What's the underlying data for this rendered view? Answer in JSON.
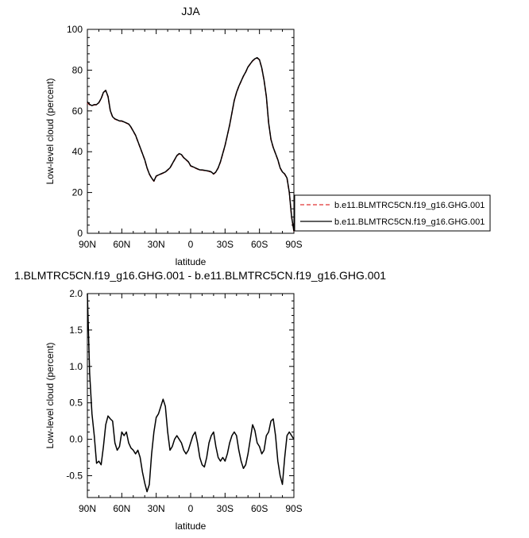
{
  "chart_data": [
    {
      "type": "line",
      "title": "JJA",
      "xlabel": "latitude",
      "ylabel": "Low-level cloud (percent)",
      "xlim": [
        -90,
        90
      ],
      "ylim": [
        0,
        100
      ],
      "x_ticks": [
        -90,
        -60,
        -30,
        0,
        30,
        60,
        90
      ],
      "x_tick_labels": [
        "90N",
        "60N",
        "30N",
        "0",
        "30S",
        "60S",
        "90S"
      ],
      "y_ticks": [
        0,
        20,
        40,
        60,
        80,
        100
      ],
      "y_tick_labels": [
        "0",
        "20",
        "40",
        "60",
        "80",
        "100"
      ],
      "legend_placement": "right",
      "series": [
        {
          "name": "b.e11.BLMTRC5CN.f19_g16.GHG.001",
          "color": "#e03030",
          "dash": "dashed",
          "x": [
            -90,
            -88,
            -86,
            -84,
            -82,
            -80,
            -78,
            -76,
            -74,
            -72,
            -70,
            -68,
            -66,
            -64,
            -62,
            -60,
            -58,
            -56,
            -54,
            -52,
            -50,
            -48,
            -46,
            -44,
            -42,
            -40,
            -38,
            -36,
            -34,
            -32,
            -30,
            -28,
            -26,
            -24,
            -22,
            -20,
            -18,
            -16,
            -14,
            -12,
            -10,
            -8,
            -6,
            -4,
            -2,
            0,
            2,
            4,
            6,
            8,
            10,
            12,
            14,
            16,
            18,
            20,
            22,
            24,
            26,
            28,
            30,
            32,
            34,
            36,
            38,
            40,
            42,
            44,
            46,
            48,
            50,
            52,
            54,
            56,
            58,
            60,
            62,
            64,
            66,
            68,
            70,
            72,
            74,
            76,
            78,
            80,
            82,
            84,
            86,
            88,
            90
          ],
          "values": [
            64,
            63,
            62.5,
            63,
            63,
            64,
            66,
            69,
            70,
            67,
            60,
            57,
            56,
            55.5,
            55,
            55,
            54.5,
            54,
            53.5,
            52,
            50,
            48,
            45,
            42,
            39,
            36,
            32,
            29,
            27,
            25.5,
            28,
            28.5,
            29,
            29.5,
            30,
            31,
            32,
            34,
            36,
            38,
            39,
            38.5,
            37,
            36,
            35,
            33,
            32.5,
            32,
            31.5,
            31,
            31,
            30.8,
            30.6,
            30.4,
            30,
            29,
            30,
            32,
            35,
            39,
            43,
            48,
            53,
            59,
            65,
            69,
            72,
            74.5,
            77,
            79,
            81.5,
            83,
            84.5,
            85.5,
            86,
            85,
            81,
            75,
            67,
            54,
            46,
            42,
            39,
            36,
            32,
            30,
            29,
            27,
            20,
            8,
            1
          ]
        },
        {
          "name": "b.e11.BLMTRC5CN.f19_g16.GHG.001",
          "color": "#000000",
          "dash": "solid",
          "x": [
            -90,
            -88,
            -86,
            -84,
            -82,
            -80,
            -78,
            -76,
            -74,
            -72,
            -70,
            -68,
            -66,
            -64,
            -62,
            -60,
            -58,
            -56,
            -54,
            -52,
            -50,
            -48,
            -46,
            -44,
            -42,
            -40,
            -38,
            -36,
            -34,
            -32,
            -30,
            -28,
            -26,
            -24,
            -22,
            -20,
            -18,
            -16,
            -14,
            -12,
            -10,
            -8,
            -6,
            -4,
            -2,
            0,
            2,
            4,
            6,
            8,
            10,
            12,
            14,
            16,
            18,
            20,
            22,
            24,
            26,
            28,
            30,
            32,
            34,
            36,
            38,
            40,
            42,
            44,
            46,
            48,
            50,
            52,
            54,
            56,
            58,
            60,
            62,
            64,
            66,
            68,
            70,
            72,
            74,
            76,
            78,
            80,
            82,
            84,
            86,
            88,
            90
          ],
          "values": [
            64.5,
            63.2,
            62.6,
            63.1,
            63.1,
            64.1,
            66.1,
            69.1,
            70.1,
            67.1,
            60.1,
            57.1,
            56.1,
            55.6,
            55.1,
            55.1,
            54.6,
            54.1,
            53.6,
            52.1,
            50.1,
            48.1,
            45.1,
            42.1,
            39.1,
            36.1,
            32.1,
            29.1,
            27.1,
            25.6,
            28.1,
            28.6,
            29.1,
            29.6,
            30.1,
            31.1,
            32.1,
            34.1,
            36.1,
            38.1,
            39.1,
            38.6,
            37.1,
            36.1,
            35.1,
            33.1,
            32.6,
            32.1,
            31.6,
            31.1,
            31.1,
            30.9,
            30.7,
            30.5,
            30.1,
            29.1,
            30.1,
            32.1,
            35.1,
            39.1,
            43.1,
            48.1,
            53.1,
            59.1,
            65.1,
            69.1,
            72.1,
            74.6,
            77.1,
            79.1,
            81.6,
            83.1,
            84.6,
            85.6,
            86.1,
            85.1,
            81.1,
            75.1,
            67.1,
            54.1,
            46.1,
            42.1,
            39.1,
            36.1,
            32.1,
            30.1,
            29.1,
            27.1,
            20.1,
            8.1,
            1.1
          ]
        }
      ]
    },
    {
      "type": "line",
      "title": "1.BLMTRC5CN.f19_g16.GHG.001 - b.e11.BLMTRC5CN.f19_g16.GHG.001",
      "xlabel": "latitude",
      "ylabel": "Low-level cloud (percent)",
      "xlim": [
        -90,
        90
      ],
      "ylim": [
        -0.8,
        2.0
      ],
      "x_ticks": [
        -90,
        -60,
        -30,
        0,
        30,
        60,
        90
      ],
      "x_tick_labels": [
        "90N",
        "60N",
        "30N",
        "0",
        "30S",
        "60S",
        "90S"
      ],
      "y_ticks": [
        -0.5,
        0,
        0.5,
        1.0,
        1.5,
        2.0
      ],
      "y_tick_labels": [
        "-0.5",
        "0.0",
        "0.5",
        "1.0",
        "1.5",
        "2.0"
      ],
      "series": [
        {
          "color": "#000000",
          "dash": "solid",
          "x": [
            -90,
            -88,
            -86,
            -84,
            -82,
            -80,
            -78,
            -76,
            -74,
            -72,
            -70,
            -68,
            -66,
            -64,
            -62,
            -60,
            -58,
            -56,
            -54,
            -52,
            -50,
            -48,
            -46,
            -44,
            -42,
            -40,
            -38,
            -36,
            -34,
            -32,
            -30,
            -28,
            -26,
            -24,
            -22,
            -20,
            -18,
            -16,
            -14,
            -12,
            -10,
            -8,
            -6,
            -4,
            -2,
            0,
            2,
            4,
            6,
            8,
            10,
            12,
            14,
            16,
            18,
            20,
            22,
            24,
            26,
            28,
            30,
            32,
            34,
            36,
            38,
            40,
            42,
            44,
            46,
            48,
            50,
            52,
            54,
            56,
            58,
            60,
            62,
            64,
            66,
            68,
            70,
            72,
            74,
            76,
            78,
            80,
            82,
            84,
            86,
            88,
            90
          ],
          "values": [
            2.0,
            0.9,
            0.35,
            0.05,
            -0.33,
            -0.3,
            -0.35,
            -0.1,
            0.2,
            0.32,
            0.28,
            0.25,
            -0.05,
            -0.15,
            -0.1,
            0.1,
            0.05,
            0.1,
            -0.05,
            -0.12,
            -0.15,
            -0.2,
            -0.15,
            -0.25,
            -0.45,
            -0.6,
            -0.72,
            -0.62,
            -0.2,
            0.1,
            0.3,
            0.35,
            0.45,
            0.55,
            0.45,
            0.1,
            -0.15,
            -0.1,
            0.0,
            0.05,
            0.0,
            -0.05,
            -0.15,
            -0.2,
            -0.15,
            -0.05,
            0.05,
            0.1,
            -0.05,
            -0.25,
            -0.35,
            -0.38,
            -0.25,
            -0.05,
            0.05,
            0.1,
            -0.1,
            -0.25,
            -0.3,
            -0.25,
            -0.3,
            -0.2,
            -0.05,
            0.05,
            0.1,
            0.05,
            -0.15,
            -0.3,
            -0.4,
            -0.35,
            -0.2,
            0.0,
            0.2,
            0.12,
            -0.05,
            -0.1,
            -0.2,
            -0.15,
            0.05,
            0.1,
            0.25,
            0.28,
            0.05,
            -0.3,
            -0.5,
            -0.62,
            -0.25,
            0.05,
            0.1,
            0.05,
            0.0
          ]
        }
      ]
    }
  ]
}
